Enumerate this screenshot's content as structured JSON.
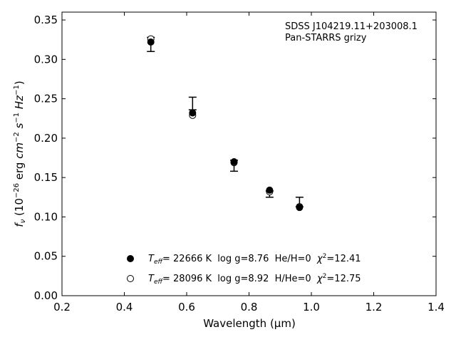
{
  "chart_data": {
    "type": "scatter",
    "xlabel": "Wavelength (μm)",
    "ylabel_parts": [
      "f",
      "ν",
      " (10",
      "−26",
      " erg ",
      "cm",
      "−2",
      " ",
      "s",
      "−1",
      " ",
      "Hz",
      "−1",
      ")"
    ],
    "xlim": [
      0.2,
      1.4
    ],
    "ylim": [
      0.0,
      0.36
    ],
    "xticks": [
      "0.2",
      "0.4",
      "0.6",
      "0.8",
      "1.0",
      "1.2",
      "1.4"
    ],
    "yticks": [
      "0.00",
      "0.05",
      "0.10",
      "0.15",
      "0.20",
      "0.25",
      "0.30",
      "0.35"
    ],
    "annotations": [
      "SDSS J104219.11+203008.1",
      "Pan-STARRS grizy"
    ],
    "observed": [
      {
        "x": 0.485,
        "y": 0.319,
        "err": 0.009
      },
      {
        "x": 0.619,
        "y": 0.244,
        "err": 0.008
      },
      {
        "x": 0.752,
        "y": 0.165,
        "err": 0.007
      },
      {
        "x": 0.866,
        "y": 0.129,
        "err": 0.004
      },
      {
        "x": 0.962,
        "y": 0.119,
        "err": 0.006
      }
    ],
    "series": [
      {
        "legend": {
          "teff_sym": "T",
          "teff_sub": "eff",
          "text_a": "= 22666 K  log g=8.76  He/H=0  ",
          "chi_sym": "χ",
          "chi_sup": "2",
          "chi_rest": "=12.41"
        },
        "marker": "filled",
        "x": [
          0.485,
          0.619,
          0.752,
          0.866,
          0.962
        ],
        "y": [
          0.322,
          0.232,
          0.17,
          0.134,
          0.112
        ]
      },
      {
        "legend": {
          "teff_sym": "T",
          "teff_sub": "eff",
          "text_a": "= 28096 K  log g=8.92  H/He=0  ",
          "chi_sym": "χ",
          "chi_sup": "2",
          "chi_rest": "=12.75"
        },
        "marker": "open",
        "x": [
          0.485,
          0.619,
          0.752,
          0.866,
          0.962
        ],
        "y": [
          0.326,
          0.229,
          0.169,
          0.132,
          0.113
        ]
      }
    ]
  }
}
